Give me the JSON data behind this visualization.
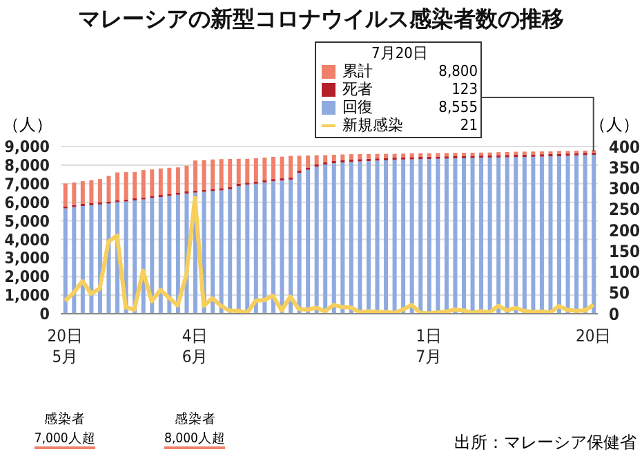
{
  "chart_data": {
    "type": "bar",
    "title": "マレーシアの新型コロナウイルス感染者数の推移",
    "stacked": true,
    "categories": [
      "20日\n5月",
      null,
      null,
      null,
      null,
      null,
      null,
      null,
      null,
      null,
      null,
      null,
      null,
      null,
      null,
      "4日\n6月",
      null,
      null,
      null,
      null,
      null,
      null,
      null,
      null,
      null,
      null,
      null,
      null,
      null,
      null,
      null,
      null,
      null,
      null,
      null,
      null,
      null,
      null,
      null,
      null,
      null,
      null,
      "1日\n7月",
      null,
      null,
      null,
      null,
      null,
      null,
      null,
      null,
      null,
      null,
      null,
      null,
      null,
      null,
      null,
      null,
      null,
      null,
      "20日"
    ],
    "ylabel": "（人）",
    "y2label": "（人）",
    "legend_title": "7月20日",
    "legend": "top",
    "ylim": [
      0,
      9000
    ],
    "yticks": [
      0,
      {
        "value": 1000,
        "label": "1,000"
      },
      {
        "value": 2000,
        "label": "2,000"
      },
      {
        "value": 3000,
        "label": "3,000"
      },
      {
        "value": 4000,
        "label": "4,000"
      },
      {
        "value": 5000,
        "label": "5,000"
      },
      {
        "value": 6000,
        "label": "6,000"
      },
      {
        "value": 7000,
        "label": "7,000"
      },
      {
        "value": 8000,
        "label": "8,000"
      },
      {
        "value": 9000,
        "label": "9,000"
      }
    ],
    "y2lim": [
      0,
      400
    ],
    "y2ticks": [
      0,
      50,
      100,
      150,
      200,
      250,
      300,
      350,
      400
    ],
    "grid": "y",
    "series": [
      {
        "name": "回復",
        "color": "#8eaadf",
        "values": [
          5670,
          5740,
          5800,
          5840,
          5880,
          5930,
          6000,
          6040,
          6100,
          6150,
          6230,
          6280,
          6340,
          6410,
          6470,
          6520,
          6560,
          6600,
          6640,
          6700,
          6880,
          6940,
          7000,
          7060,
          7130,
          7170,
          7220,
          7580,
          7750,
          7920,
          8030,
          8100,
          8140,
          8170,
          8200,
          8220,
          8240,
          8260,
          8280,
          8300,
          8310,
          8320,
          8330,
          8340,
          8350,
          8360,
          8370,
          8380,
          8390,
          8400,
          8410,
          8420,
          8430,
          8440,
          8450,
          8460,
          8470,
          8480,
          8500,
          8520,
          8540,
          8555
        ]
      },
      {
        "name": "死者",
        "color": "#b3202a",
        "values": [
          113,
          113,
          113,
          113,
          113,
          113,
          113,
          113,
          113,
          113,
          115,
          115,
          115,
          115,
          115,
          115,
          117,
          117,
          117,
          117,
          117,
          117,
          117,
          117,
          117,
          117,
          117,
          117,
          117,
          117,
          117,
          121,
          121,
          121,
          121,
          121,
          121,
          121,
          121,
          121,
          121,
          121,
          121,
          121,
          121,
          121,
          122,
          122,
          122,
          122,
          122,
          122,
          122,
          122,
          122,
          122,
          122,
          122,
          122,
          122,
          122,
          123
        ]
      },
      {
        "name": "累計",
        "color": "#f0806a",
        "values": [
          1226,
          1206,
          1224,
          1232,
          1252,
          1374,
          1491,
          1466,
          1416,
          1469,
          1417,
          1424,
          1402,
          1352,
          1385,
          1612,
          1589,
          1586,
          1565,
          1512,
          1339,
          1281,
          1252,
          1225,
          1198,
          1166,
          1157,
          808,
          648,
          492,
          388,
          335,
          311,
          296,
          269,
          255,
          239,
          223,
          205,
          195,
          206,
          198,
          189,
          182,
          177,
          177,
          174,
          166,
          162,
          155,
          164,
          162,
          166,
          163,
          157,
          152,
          145,
          153,
          142,
          129,
          117,
          122
        ]
      },
      {
        "name": "新規感染",
        "type": "line",
        "axis": "y2",
        "color": "#f7cf5c",
        "values": [
          31,
          50,
          78,
          48,
          60,
          172,
          187,
          15,
          10,
          103,
          30,
          57,
          38,
          20,
          93,
          277,
          19,
          37,
          19,
          7,
          7,
          2,
          31,
          33,
          43,
          8,
          41,
          11,
          10,
          14,
          6,
          21,
          16,
          15,
          3,
          6,
          4,
          4,
          2,
          10,
          21,
          2,
          1,
          3,
          5,
          10,
          8,
          2,
          6,
          3,
          19,
          8,
          14,
          7,
          4,
          5,
          3,
          18,
          9,
          7,
          8,
          21
        ]
      }
    ],
    "annotations": [
      "8,555",
      "123",
      {
        "text": "8,800",
        "x": "20日",
        "y": 8800
      },
      "21",
      "感染者\n7,000人超",
      "感染者\n8,000人超",
      "出所：マレーシア保健省"
    ]
  }
}
